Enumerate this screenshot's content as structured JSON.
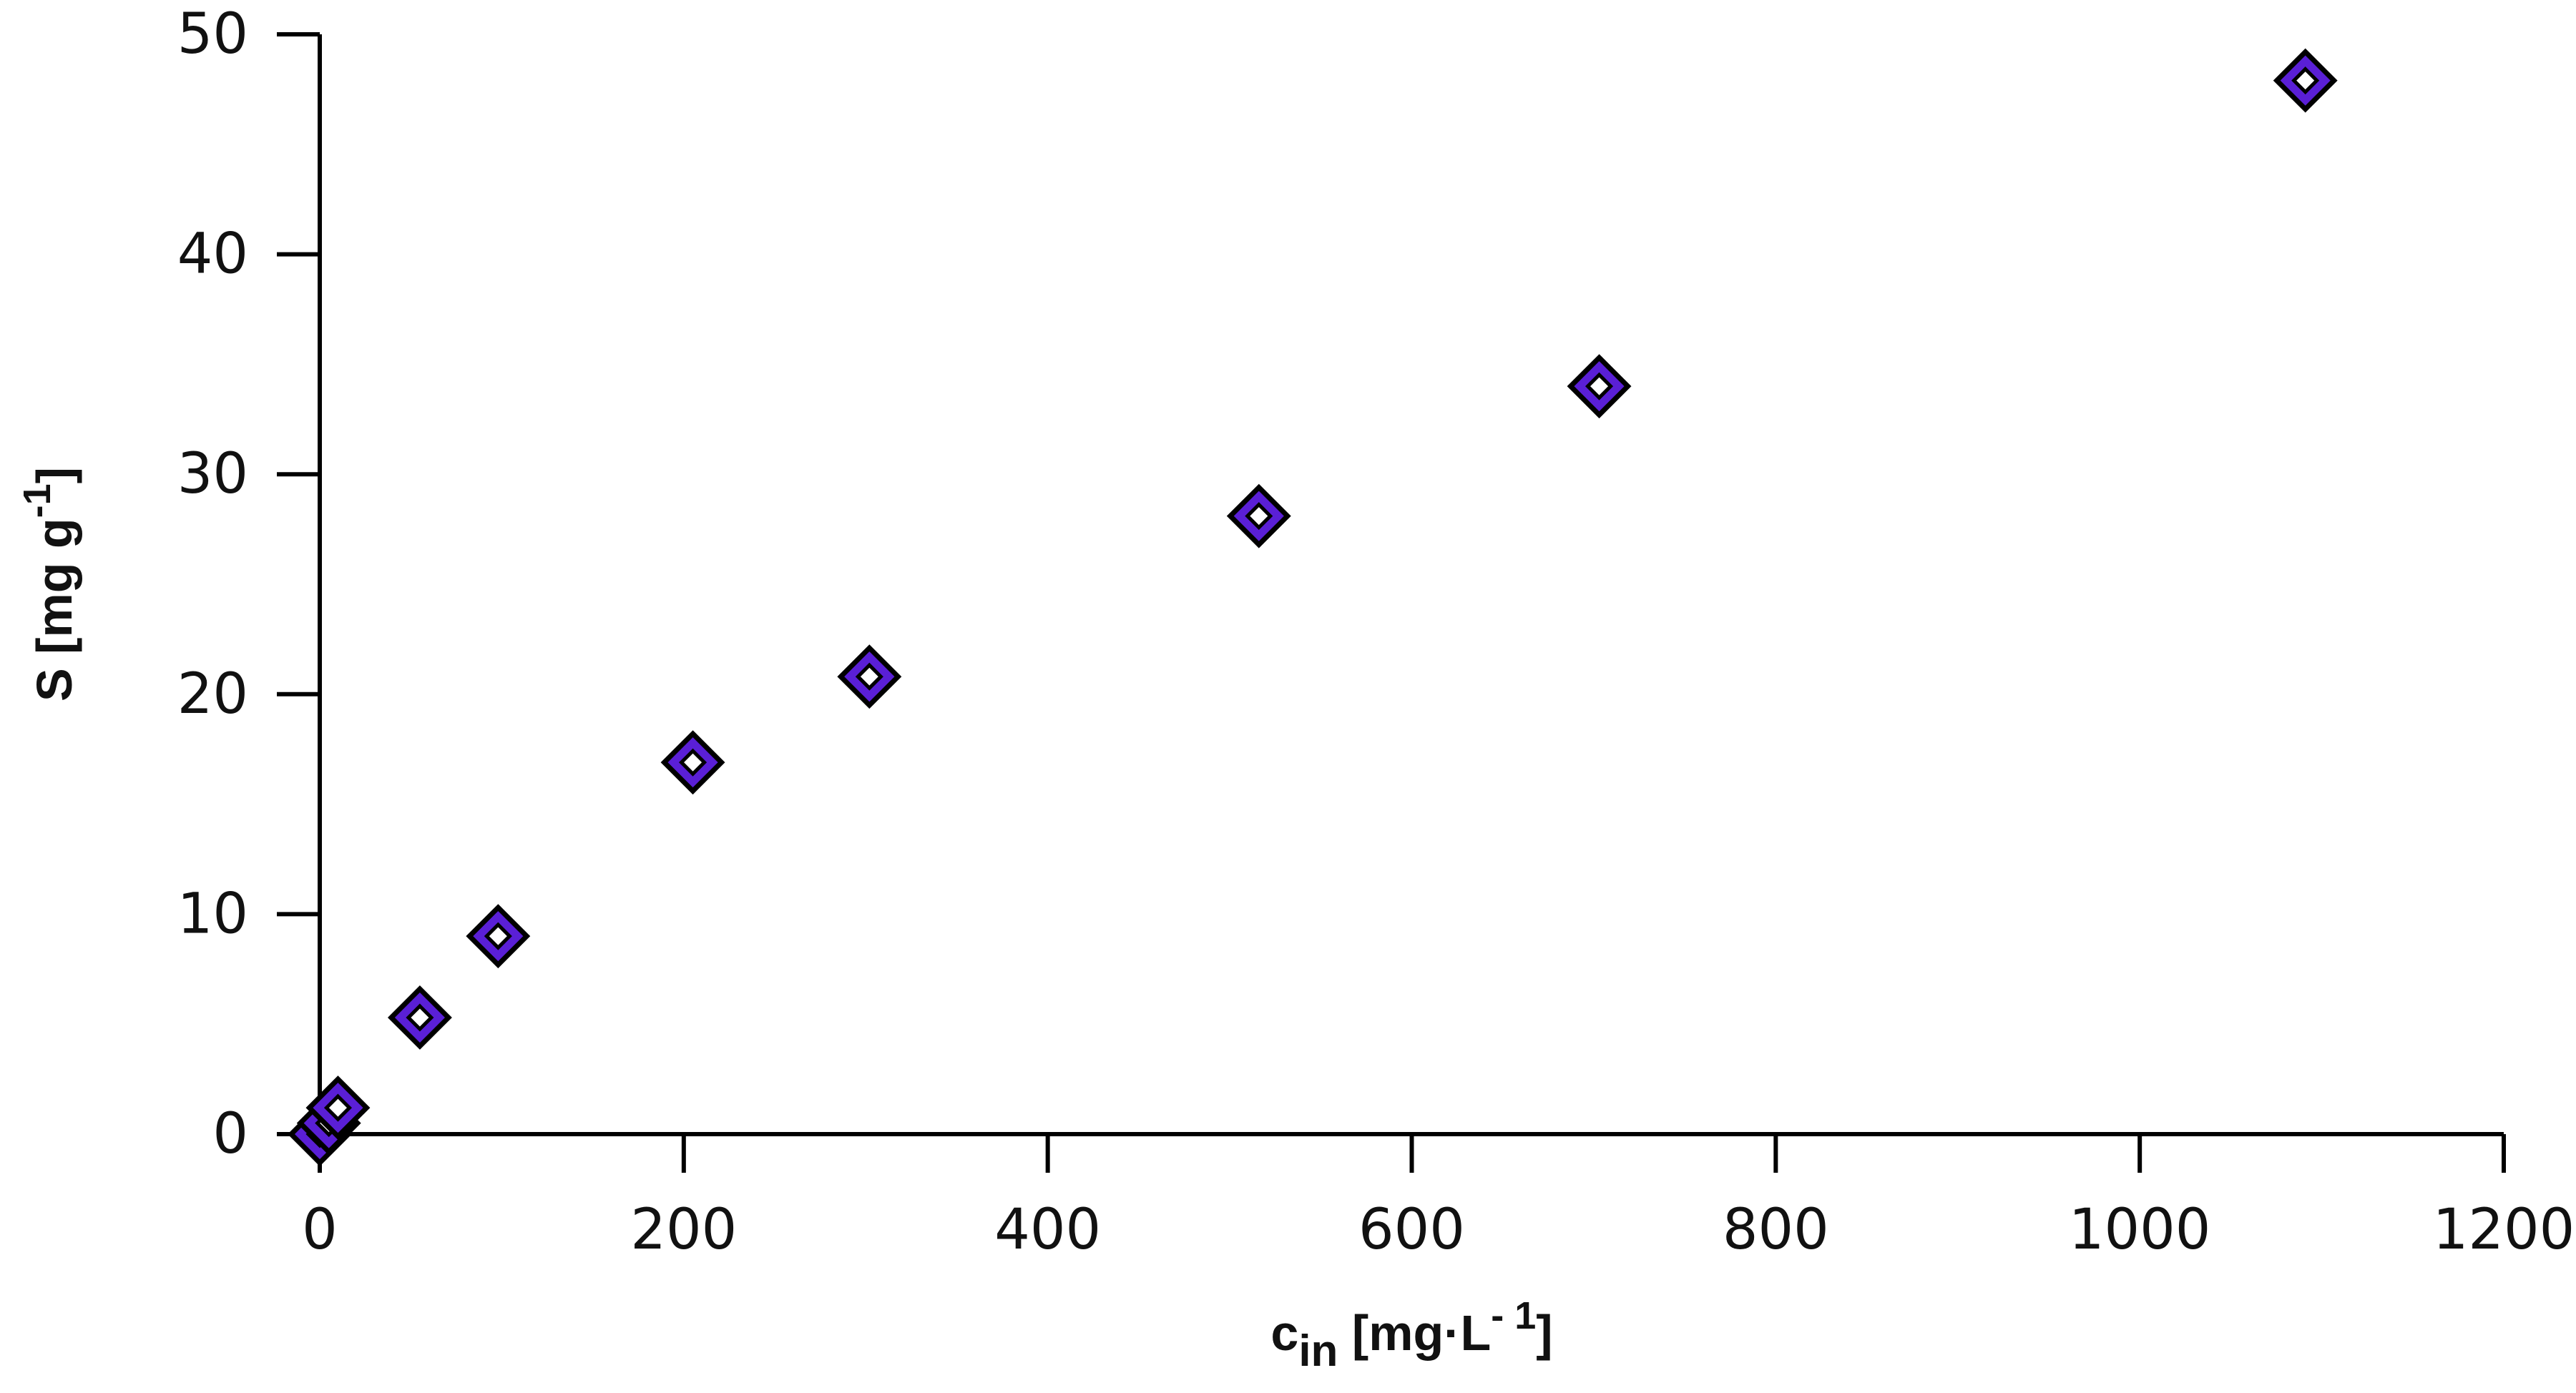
{
  "chart_data": {
    "type": "scatter",
    "title": "",
    "xlabel": {
      "base": "c",
      "subscript": "in",
      "unit_prefix": " [mg·L",
      "superscript": "- 1",
      "unit_suffix": "]"
    },
    "ylabel": {
      "base": "S [mg g",
      "superscript": "-1",
      "suffix": "]"
    },
    "xlim": [
      0,
      1200
    ],
    "ylim": [
      0,
      50
    ],
    "xticks": [
      "0",
      "200",
      "400",
      "600",
      "800",
      "1000",
      "1200"
    ],
    "yticks": [
      "0",
      "10",
      "20",
      "30",
      "40",
      "50"
    ],
    "grid": false,
    "marker": "diamond",
    "colors": {
      "marker_fill": "#5a1fd6",
      "marker_stroke": "#000000",
      "axis": "#000000"
    },
    "series": [
      {
        "x": [
          0,
          5,
          10,
          55,
          98,
          205,
          302,
          516,
          703,
          1091
        ],
        "y": [
          0,
          0.5,
          1.2,
          5.3,
          9.0,
          16.9,
          20.8,
          28.1,
          34.0,
          47.9
        ]
      }
    ]
  }
}
